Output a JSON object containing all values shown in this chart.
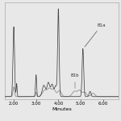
{
  "xlabel": "Minutes",
  "xlabel_fontsize": 4.5,
  "tick_fontsize": 4,
  "xlim": [
    1.6,
    6.7
  ],
  "ylim": [
    -0.03,
    1.08
  ],
  "xticks": [
    2.0,
    3.0,
    4.0,
    5.0,
    6.0
  ],
  "xtick_labels": [
    "2.00",
    "3.00",
    "4.00",
    "5.00",
    "6.00"
  ],
  "annotation_a": "B1a",
  "annotation_b": "B1b",
  "line_color_a": "#444444",
  "line_color_b": "#888888",
  "background": "#e8e8e8",
  "linewidth": 0.55
}
